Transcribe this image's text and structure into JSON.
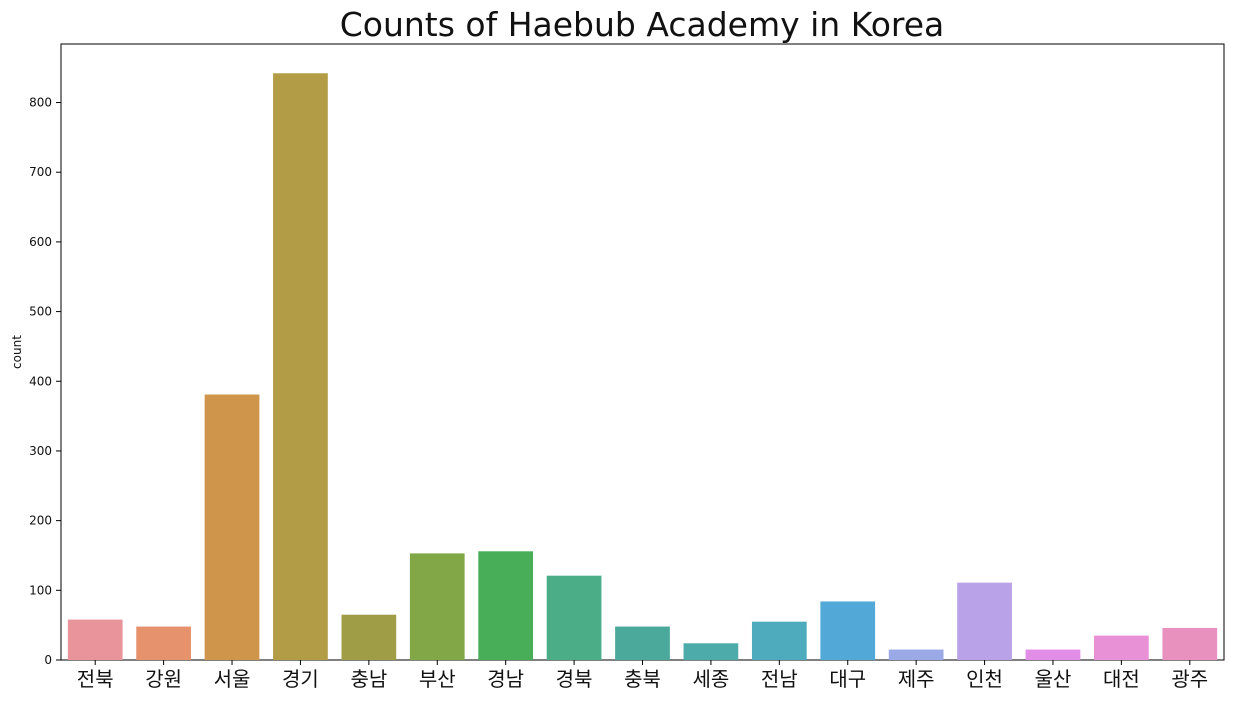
{
  "chart_data": {
    "type": "bar",
    "title": "Counts of Haebub Academy in Korea",
    "xlabel": "",
    "ylabel": "count",
    "categories": [
      "전북",
      "강원",
      "서울",
      "경기",
      "충남",
      "부산",
      "경남",
      "경북",
      "충북",
      "세종",
      "전남",
      "대구",
      "제주",
      "인천",
      "울산",
      "대전",
      "광주"
    ],
    "values": [
      58,
      48,
      381,
      842,
      65,
      153,
      156,
      121,
      48,
      24,
      55,
      84,
      15,
      111,
      15,
      35,
      46
    ],
    "colors": [
      "#e9949b",
      "#e6926d",
      "#cf964b",
      "#b39c46",
      "#9f9e46",
      "#82a746",
      "#48ae58",
      "#4aad88",
      "#4ba99b",
      "#4dabaa",
      "#4eabbe",
      "#52a9d8",
      "#9ba9e6",
      "#b9a2e8",
      "#e38ee6",
      "#e891d6",
      "#e891bf"
    ],
    "ylim": [
      0,
      884
    ],
    "yticks": [
      0,
      100,
      200,
      300,
      400,
      500,
      600,
      700,
      800
    ],
    "grid": false,
    "legend": "none"
  }
}
